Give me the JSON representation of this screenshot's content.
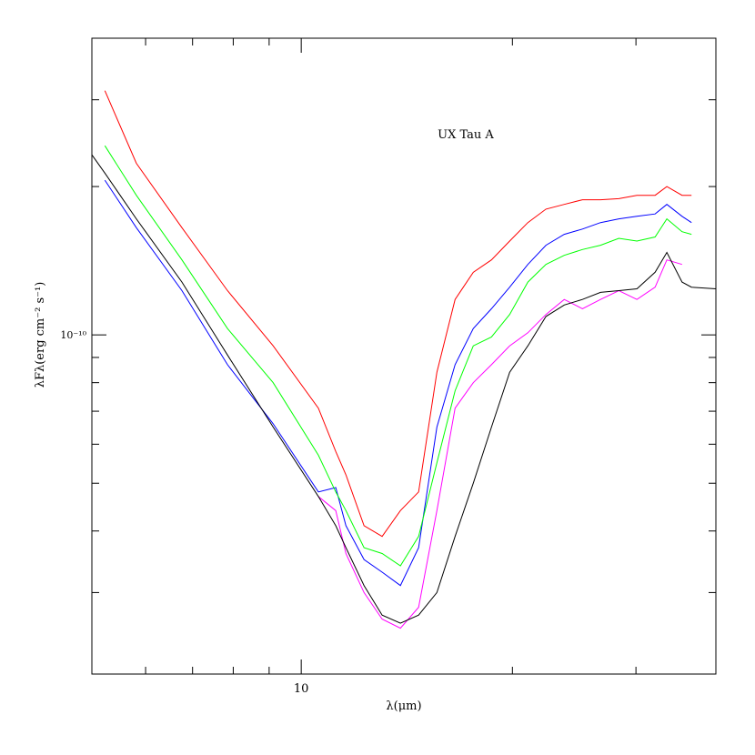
{
  "chart_data": {
    "type": "line",
    "annotation": "UX Tau A",
    "x_label": "λ(μm)",
    "y_label": "λFλ(erg cm⁻² s⁻¹)",
    "xscale": "log",
    "yscale": "log",
    "xlim": [
      5.03,
      39.0
    ],
    "ylim": [
      2.05e-11,
      4e-10
    ],
    "xticks": [
      10
    ],
    "xminor_ticks": [
      6,
      7,
      8,
      9,
      20,
      30
    ],
    "yticks": [
      {
        "value": 1e-10,
        "label": "10⁻¹⁰"
      }
    ],
    "yminor_ticks": [
      3e-11,
      4e-11,
      5e-11,
      6e-11,
      7e-11,
      8e-11,
      9e-11,
      2e-10,
      3e-10
    ],
    "x": [
      5.03,
      5.25,
      5.82,
      6.76,
      7.85,
      9.12,
      10.58,
      11.2,
      11.58,
      12.29,
      13.04,
      13.85,
      14.7,
      15.61,
      16.57,
      17.59,
      18.67,
      19.82,
      21.04,
      22.33,
      23.71,
      25.17,
      26.71,
      28.36,
      30.1,
      31.95,
      33.2,
      34.9,
      36.0,
      39.0
    ],
    "series": [
      {
        "color": "#ff0000",
        "values": [
          null,
          3.13e-10,
          2.23e-10,
          1.65e-10,
          1.23e-10,
          9.5e-11,
          7.1e-11,
          5.8e-11,
          5.2e-11,
          4.1e-11,
          3.9e-11,
          4.4e-11,
          4.8e-11,
          8.4e-11,
          1.18e-10,
          1.34e-10,
          1.42e-10,
          1.55e-10,
          1.69e-10,
          1.8e-10,
          1.84e-10,
          1.88e-10,
          1.88e-10,
          1.89e-10,
          1.92e-10,
          1.92e-10,
          2e-10,
          1.92e-10,
          1.92e-10,
          null
        ]
      },
      {
        "color": "#0000ff",
        "values": [
          null,
          2.06e-10,
          1.65e-10,
          1.23e-10,
          8.7e-11,
          6.6e-11,
          4.8e-11,
          4.9e-11,
          4.1e-11,
          3.5e-11,
          3.3e-11,
          3.1e-11,
          3.7e-11,
          6.5e-11,
          8.7e-11,
          1.03e-10,
          1.13e-10,
          1.25e-10,
          1.39e-10,
          1.52e-10,
          1.6e-10,
          1.64e-10,
          1.69e-10,
          1.72e-10,
          1.74e-10,
          1.76e-10,
          1.84e-10,
          1.74e-10,
          1.69e-10,
          null
        ]
      },
      {
        "color": "#00ff00",
        "values": [
          null,
          2.42e-10,
          1.92e-10,
          1.42e-10,
          1.03e-10,
          8e-11,
          5.7e-11,
          4.8e-11,
          4.4e-11,
          3.7e-11,
          3.6e-11,
          3.4e-11,
          3.9e-11,
          5.5e-11,
          7.7e-11,
          9.5e-11,
          9.9e-11,
          1.1e-10,
          1.28e-10,
          1.39e-10,
          1.45e-10,
          1.49e-10,
          1.52e-10,
          1.57e-10,
          1.55e-10,
          1.58e-10,
          1.72e-10,
          1.62e-10,
          1.6e-10,
          null
        ]
      },
      {
        "color": "#ff00ff",
        "values": [
          null,
          null,
          null,
          null,
          null,
          null,
          4.7e-11,
          4.4e-11,
          3.6e-11,
          3e-11,
          2.65e-11,
          2.54e-11,
          2.8e-11,
          4.4e-11,
          7.1e-11,
          8e-11,
          8.7e-11,
          9.5e-11,
          1.01e-10,
          1.1e-10,
          1.18e-10,
          1.13e-10,
          1.18e-10,
          1.23e-10,
          1.18e-10,
          1.25e-10,
          1.42e-10,
          1.39e-10,
          null,
          null
        ]
      },
      {
        "color": "#000000",
        "values": [
          2.32e-10,
          2.13e-10,
          1.72e-10,
          1.28e-10,
          9.1e-11,
          6.5e-11,
          4.7e-11,
          4.1e-11,
          3.7e-11,
          3.1e-11,
          2.7e-11,
          2.6e-11,
          2.7e-11,
          3e-11,
          3.9e-11,
          5e-11,
          6.5e-11,
          8.4e-11,
          9.5e-11,
          1.09e-10,
          1.15e-10,
          1.18e-10,
          1.22e-10,
          1.23e-10,
          1.24e-10,
          1.34e-10,
          1.47e-10,
          1.28e-10,
          1.25e-10,
          1.24e-10
        ]
      }
    ]
  }
}
